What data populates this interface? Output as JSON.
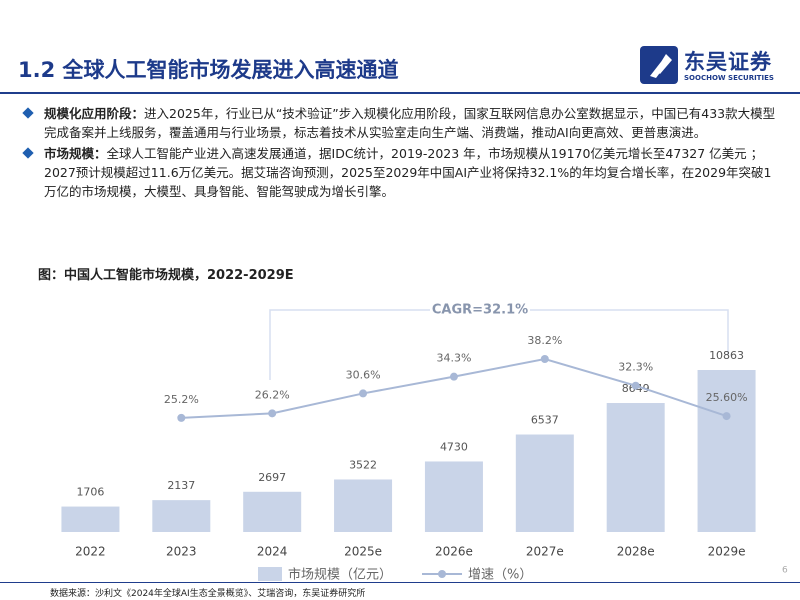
{
  "header": {
    "title": "1.2 全球人工智能市场发展进入高速通道",
    "logo": {
      "name": "东吴证券",
      "subtitle": "SOOCHOW SECURITIES"
    }
  },
  "bullets": [
    {
      "lead": "规模化应用阶段：",
      "text": "进入2025年，行业已从“技术验证”步入规模化应用阶段，国家互联网信息办公室数据显示，中国已有433款大模型完成备案并上线服务，覆盖通用与行业场景，标志着技术从实验室走向生产端、消费端，推动AI向更高效、更普惠演进。"
    },
    {
      "lead": "市场规模：",
      "text": "全球人工智能产业进入高速发展通道，据IDC统计，2019-2023 年，市场规模从19170亿美元增长至47327 亿美元 ； 2027预计规模超过11.6万亿美元。据艾瑞咨询预测，2025至2029年中国AI产业将保持32.1%的年均复合增长率，在2029年突破1万亿的市场规模，大模型、具身智能、智能驾驶成为增长引擎。"
    }
  ],
  "chart_data": {
    "type": "combo",
    "title": "图：中国人工智能市场规模，2022-2029E",
    "categories": [
      "2022",
      "2023",
      "2024",
      "2025e",
      "2026e",
      "2027e",
      "2028e",
      "2029e"
    ],
    "series": [
      {
        "name": "市场规模（亿元）",
        "type": "bar",
        "color": "#c9d4e8",
        "values": [
          1706,
          2137,
          2697,
          3522,
          4730,
          6537,
          8649,
          10863
        ]
      },
      {
        "name": "增速（%）",
        "type": "line",
        "axis": "y2",
        "color": "#a8b8d6",
        "values": [
          null,
          25.2,
          26.2,
          30.6,
          34.3,
          38.2,
          32.3,
          25.6
        ],
        "value_labels": [
          null,
          "25.2%",
          "26.2%",
          "30.6%",
          "34.3%",
          "38.2%",
          "32.3%",
          "25.60%"
        ]
      }
    ],
    "annotation": "CAGR=32.1%",
    "legend": "bottom"
  },
  "source": "数据来源：沙利文《2024年全球AI生态全景概览》、艾瑞咨询，东吴证券研究所",
  "page_number": 6
}
